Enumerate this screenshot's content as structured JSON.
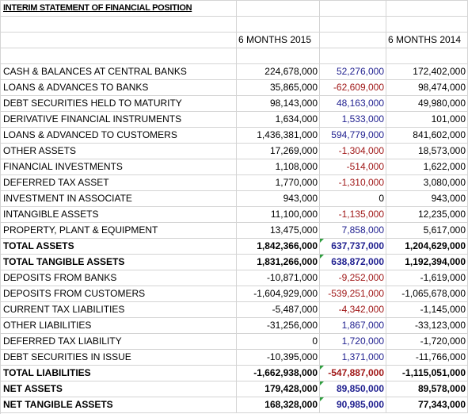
{
  "title": "INTERIM STATEMENT OF FINANCIAL POSITION",
  "headers": {
    "col2015": "6 MONTHS 2015",
    "col2014": "6 MONTHS 2014"
  },
  "colors": {
    "positive_change": "#1f1f8f",
    "negative_change": "#a01818",
    "flag": "#2e9e3e"
  },
  "rows": [
    {
      "label": "CASH & BALANCES AT CENTRAL BANKS",
      "y2015": "224,678,000",
      "change": "52,276,000",
      "y2014": "172,402,000",
      "sign": "pos"
    },
    {
      "label": "LOANS & ADVANCES TO BANKS",
      "y2015": "35,865,000",
      "change": "-62,609,000",
      "y2014": "98,474,000",
      "sign": "neg"
    },
    {
      "label": "DEBT SECURITIES HELD TO MATURITY",
      "y2015": "98,143,000",
      "change": "48,163,000",
      "y2014": "49,980,000",
      "sign": "pos"
    },
    {
      "label": "DERIVATIVE FINANCIAL INSTRUMENTS",
      "y2015": "1,634,000",
      "change": "1,533,000",
      "y2014": "101,000",
      "sign": "pos"
    },
    {
      "label": "LOANS & ADVANCED TO CUSTOMERS",
      "y2015": "1,436,381,000",
      "change": "594,779,000",
      "y2014": "841,602,000",
      "sign": "pos"
    },
    {
      "label": "OTHER ASSETS",
      "y2015": "17,269,000",
      "change": "-1,304,000",
      "y2014": "18,573,000",
      "sign": "neg"
    },
    {
      "label": "FINANCIAL INVESTMENTS",
      "y2015": "1,108,000",
      "change": "-514,000",
      "y2014": "1,622,000",
      "sign": "neg"
    },
    {
      "label": "DEFERRED TAX ASSET",
      "y2015": "1,770,000",
      "change": "-1,310,000",
      "y2014": "3,080,000",
      "sign": "neg"
    },
    {
      "label": "INVESTMENT IN ASSOCIATE",
      "y2015": "943,000",
      "change": "0",
      "y2014": "943,000",
      "sign": "zero"
    },
    {
      "label": "INTANGIBLE ASSETS",
      "y2015": "11,100,000",
      "change": "-1,135,000",
      "y2014": "12,235,000",
      "sign": "neg"
    },
    {
      "label": "PROPERTY, PLANT & EQUIPMENT",
      "y2015": "13,475,000",
      "change": "7,858,000",
      "y2014": "5,617,000",
      "sign": "pos"
    },
    {
      "label": "TOTAL ASSETS",
      "y2015": "1,842,366,000",
      "change": "637,737,000",
      "y2014": "1,204,629,000",
      "sign": "pos",
      "bold": true,
      "flag": true
    },
    {
      "label": "TOTAL TANGIBLE ASSETS",
      "y2015": "1,831,266,000",
      "change": "638,872,000",
      "y2014": "1,192,394,000",
      "sign": "pos",
      "bold": true,
      "flag": true
    },
    {
      "label": "DEPOSITS FROM BANKS",
      "y2015": "-10,871,000",
      "change": "-9,252,000",
      "y2014": "-1,619,000",
      "sign": "neg"
    },
    {
      "label": "DEPOSITS FROM CUSTOMERS",
      "y2015": "-1,604,929,000",
      "change": "-539,251,000",
      "y2014": "-1,065,678,000",
      "sign": "neg"
    },
    {
      "label": "CURRENT TAX LIABILITIES",
      "y2015": "-5,487,000",
      "change": "-4,342,000",
      "y2014": "-1,145,000",
      "sign": "neg"
    },
    {
      "label": "OTHER LIABILITIES",
      "y2015": "-31,256,000",
      "change": "1,867,000",
      "y2014": "-33,123,000",
      "sign": "pos"
    },
    {
      "label": "DEFERRED TAX LIABILITY",
      "y2015": "0",
      "change": "1,720,000",
      "y2014": "-1,720,000",
      "sign": "pos"
    },
    {
      "label": "DEBT SECURITIES IN ISSUE",
      "y2015": "-10,395,000",
      "change": "1,371,000",
      "y2014": "-11,766,000",
      "sign": "pos"
    },
    {
      "label": "TOTAL LIABILITIES",
      "y2015": "-1,662,938,000",
      "change": "-547,887,000",
      "y2014": "-1,115,051,000",
      "sign": "neg",
      "bold": true,
      "flag": true
    },
    {
      "label": "NET ASSETS",
      "y2015": "179,428,000",
      "change": "89,850,000",
      "y2014": "89,578,000",
      "sign": "pos",
      "bold": true,
      "flag": true
    },
    {
      "label": "NET TANGIBLE ASSETS",
      "y2015": "168,328,000",
      "change": "90,985,000",
      "y2014": "77,343,000",
      "sign": "pos",
      "bold": true,
      "flag": true
    }
  ]
}
